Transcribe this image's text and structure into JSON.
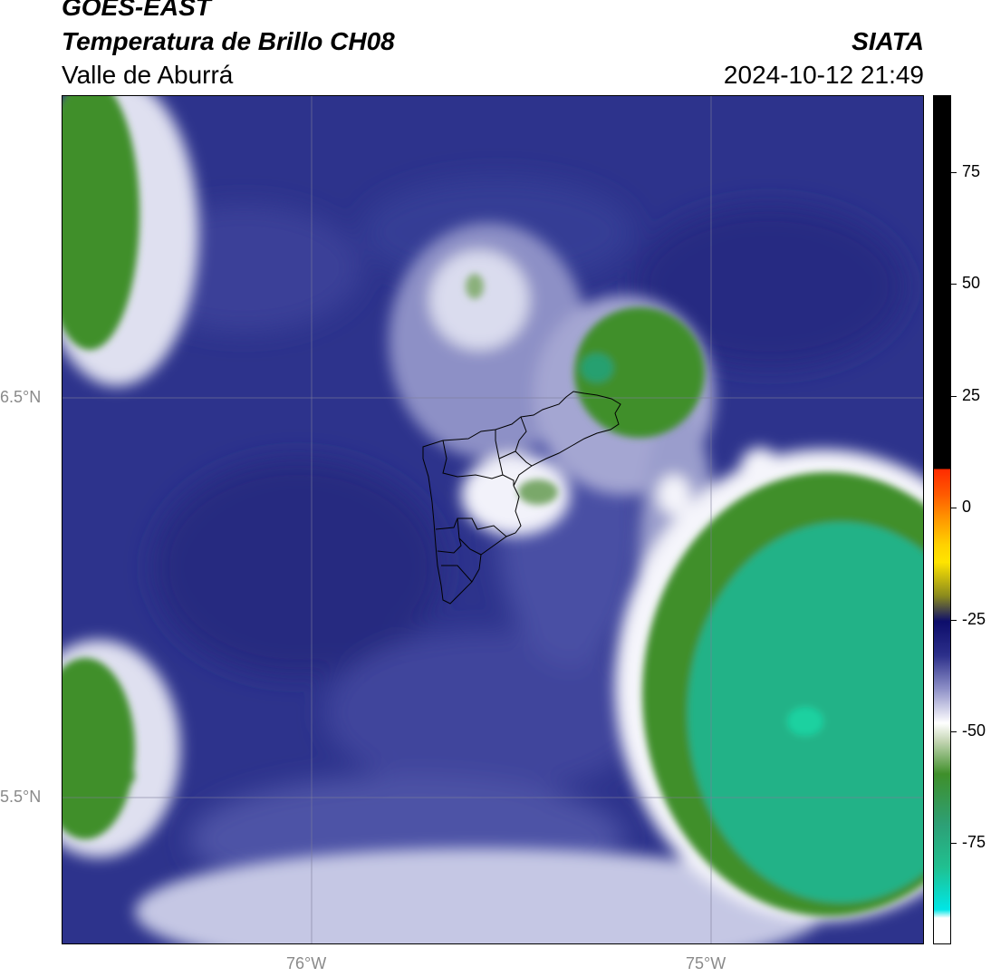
{
  "header": {
    "satellite": "GOES-EAST",
    "product": "Temperatura de Brillo CH08",
    "region": "Valle de Aburrá",
    "organization": "SIATA",
    "datetime": "2024-10-12 21:49"
  },
  "map": {
    "lat_labels": [
      "6.5°N",
      "5.5°N"
    ],
    "lon_labels": [
      "76°W",
      "75°W"
    ],
    "boundary_name": "Valle de Aburrá municipalities"
  },
  "colorbar": {
    "tick_labels": [
      "75",
      "50",
      "25",
      "0",
      "-25",
      "-50",
      "-75"
    ],
    "colors": {
      "black": "#000000",
      "red": "#ff2a00",
      "orange": "#ff9900",
      "yellow": "#ffe400",
      "olive": "#8a8a1e",
      "navy": "#0d0d6b",
      "blue": "#2c2f8a",
      "lavender": "#8f91c8",
      "white": "#ffffff",
      "green": "#3f8f2a",
      "teal": "#20c090",
      "cyan": "#00e6e6"
    }
  }
}
